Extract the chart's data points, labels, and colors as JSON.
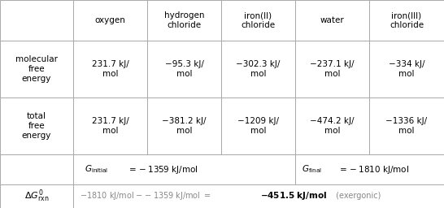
{
  "col_headers": [
    "",
    "oxygen",
    "hydrogen\nchloride",
    "iron(II)\nchloride",
    "water",
    "iron(III)\nchloride"
  ],
  "row1_label": "molecular\nfree\nenergy",
  "row1_values": [
    "231.7 kJ/\nmol",
    "−95.3 kJ/\nmol",
    "−302.3 kJ/\nmol",
    "−237.1 kJ/\nmol",
    "−334 kJ/\nmol"
  ],
  "row2_label": "total\nfree\nenergy",
  "row2_values": [
    "231.7 kJ/\nmol",
    "−381.2 kJ/\nmol",
    "−1209 kJ/\nmol",
    "−474.2 kJ/\nmol",
    "−1336 kJ/\nmol"
  ],
  "border_color": "#aaaaaa",
  "bg_color": "#ffffff",
  "text_color": "#000000",
  "gray_color": "#888888"
}
